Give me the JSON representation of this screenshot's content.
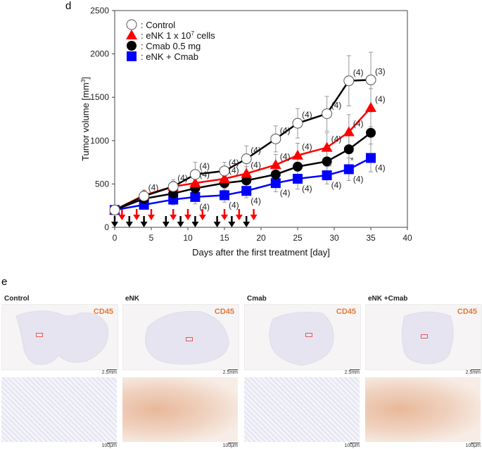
{
  "figure": {
    "panel_d_label": "d",
    "panel_e_label": "e"
  },
  "chart_data": {
    "type": "line",
    "title": "",
    "xlabel": "Days after the first treatment [day]",
    "ylabel": "Tumor volume [mm³]",
    "ylabel_base": "Tumor volume [mm",
    "ylabel_sup": "3",
    "ylabel_end": "]",
    "xlim": [
      0,
      40
    ],
    "ylim": [
      0,
      2500
    ],
    "xticks": [
      0,
      5,
      10,
      15,
      20,
      25,
      30,
      35,
      40
    ],
    "yticks": [
      0,
      500,
      1000,
      1500,
      2000,
      2500
    ],
    "grid": false,
    "legend_position": "top-left",
    "x": [
      0,
      4,
      8,
      11,
      15,
      18,
      22,
      25,
      29,
      32,
      35
    ],
    "series": [
      {
        "name": "Control",
        "legend_label": ": Control",
        "marker": "open-circle",
        "color": "#000000",
        "values": [
          200,
          360,
          470,
          610,
          650,
          790,
          1020,
          1200,
          1310,
          1690,
          1700
        ],
        "err": [
          20,
          60,
          80,
          140,
          100,
          150,
          150,
          170,
          200,
          290,
          320
        ],
        "n_labels": [
          "",
          "(4)",
          "(4)",
          "(4)",
          "(4)",
          "(4)",
          "(4)",
          "(4)",
          "(4)",
          "(4)",
          "(3)"
        ]
      },
      {
        "name": "eNK 1 x 10^7 cells",
        "legend_label": ": eNK 1 x 10",
        "legend_sup": "7",
        "legend_end": " cells",
        "marker": "triangle",
        "color": "#ff0000",
        "values": [
          200,
          370,
          470,
          510,
          560,
          620,
          720,
          830,
          920,
          1100,
          1380
        ],
        "err": [
          20,
          60,
          60,
          80,
          80,
          80,
          120,
          140,
          170,
          200,
          220
        ],
        "n_labels": [
          "",
          "",
          "",
          "(4)",
          "(4)",
          "(4)",
          "(4)",
          "(4)",
          "(4)",
          "(4)",
          "(4)"
        ]
      },
      {
        "name": "Cmab 0.5 mg",
        "legend_label": ": Cmab 0.5 mg",
        "marker": "filled-circle",
        "color": "#000000",
        "values": [
          200,
          330,
          390,
          450,
          510,
          540,
          610,
          700,
          760,
          900,
          1090
        ],
        "err": [
          20,
          40,
          50,
          80,
          80,
          80,
          120,
          130,
          150,
          190,
          240
        ],
        "n_labels": [
          "",
          "",
          "",
          "",
          "",
          "",
          "",
          "",
          "",
          "",
          ""
        ]
      },
      {
        "name": "eNK + Cmab",
        "legend_label": ": eNK + Cmab",
        "marker": "square",
        "color": "#0000ff",
        "values": [
          200,
          260,
          320,
          350,
          370,
          420,
          510,
          560,
          600,
          670,
          800
        ],
        "err": [
          20,
          40,
          60,
          80,
          80,
          80,
          100,
          120,
          100,
          130,
          160
        ],
        "n_labels": [
          "",
          "",
          "",
          "(4)",
          "(4)",
          "(4)",
          "(4)",
          "(4)",
          "(4)",
          "(4)",
          "(4)"
        ],
        "significance": [
          "",
          "",
          "",
          "",
          "",
          "",
          "",
          "",
          "*",
          "*",
          ""
        ]
      }
    ],
    "treatment_arrows": {
      "black_days": [
        0,
        2,
        4,
        7,
        9,
        11,
        14,
        16,
        18
      ],
      "red_days": [
        1,
        3,
        5,
        8,
        10,
        12,
        15,
        17,
        19
      ]
    }
  },
  "ihc_panels": [
    {
      "title": "Control",
      "marker": "CD45",
      "scale_top": "2.5mm",
      "scale_bottom": "100μm",
      "stain": "negative"
    },
    {
      "title": "eNK",
      "marker": "CD45",
      "scale_top": "2.5mm",
      "scale_bottom": "100μm",
      "stain": "positive"
    },
    {
      "title": "Cmab",
      "marker": "CD45",
      "scale_top": "2.5mm",
      "scale_bottom": "100μm",
      "stain": "negative"
    },
    {
      "title": "eNK +Cmab",
      "marker": "CD45",
      "scale_top": "2.5mm",
      "scale_bottom": "100μm",
      "stain": "positive"
    }
  ]
}
